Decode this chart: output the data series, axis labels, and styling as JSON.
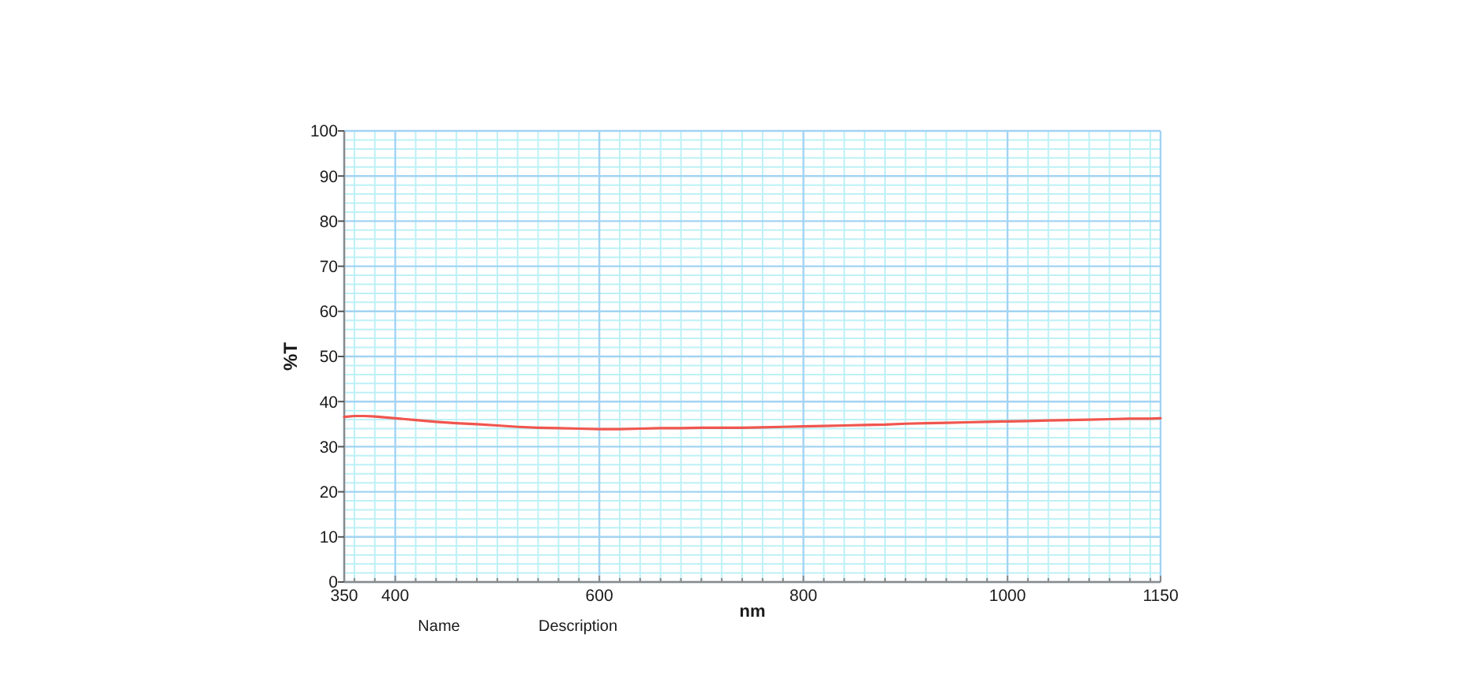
{
  "chart_data": {
    "type": "line",
    "xlabel": "nm",
    "ylabel": "%T",
    "annotations": [
      "Name",
      "Description"
    ],
    "x": [
      350,
      360,
      370,
      380,
      400,
      420,
      440,
      460,
      480,
      500,
      520,
      540,
      560,
      580,
      600,
      620,
      640,
      660,
      680,
      700,
      720,
      740,
      760,
      780,
      800,
      820,
      840,
      860,
      880,
      900,
      920,
      940,
      960,
      980,
      1000,
      1020,
      1040,
      1060,
      1080,
      1100,
      1120,
      1140,
      1150
    ],
    "series": [
      {
        "color": "#f0564e",
        "values": [
          36.6,
          36.8,
          36.8,
          36.7,
          36.3,
          35.9,
          35.5,
          35.2,
          35.0,
          34.7,
          34.4,
          34.2,
          34.1,
          34.0,
          33.9,
          33.9,
          34.0,
          34.1,
          34.1,
          34.2,
          34.2,
          34.2,
          34.3,
          34.4,
          34.5,
          34.6,
          34.7,
          34.8,
          34.9,
          35.1,
          35.2,
          35.3,
          35.4,
          35.5,
          35.6,
          35.7,
          35.8,
          35.9,
          36.0,
          36.1,
          36.2,
          36.2,
          36.3
        ]
      }
    ],
    "xlim": [
      350,
      1150
    ],
    "ylim": [
      0,
      100
    ],
    "xticks": [
      350,
      {
        "value": 360,
        "label": null
      },
      {
        "value": 380,
        "label": null
      },
      400,
      {
        "value": 420,
        "label": null
      },
      {
        "value": 440,
        "label": null
      },
      {
        "value": 460,
        "label": null
      },
      {
        "value": 480,
        "label": null
      },
      {
        "value": 500,
        "label": null
      },
      {
        "value": 520,
        "label": null
      },
      {
        "value": 540,
        "label": null
      },
      {
        "value": 560,
        "label": null
      },
      {
        "value": 580,
        "label": null
      },
      600,
      {
        "value": 620,
        "label": null
      },
      {
        "value": 640,
        "label": null
      },
      {
        "value": 660,
        "label": null
      },
      {
        "value": 680,
        "label": null
      },
      {
        "value": 700,
        "label": null
      },
      {
        "value": 720,
        "label": null
      },
      {
        "value": 740,
        "label": null
      },
      {
        "value": 760,
        "label": null
      },
      {
        "value": 780,
        "label": null
      },
      800,
      {
        "value": 820,
        "label": null
      },
      {
        "value": 840,
        "label": null
      },
      {
        "value": 860,
        "label": null
      },
      {
        "value": 880,
        "label": null
      },
      {
        "value": 900,
        "label": null
      },
      {
        "value": 920,
        "label": null
      },
      {
        "value": 940,
        "label": null
      },
      {
        "value": 960,
        "label": null
      },
      {
        "value": 980,
        "label": null
      },
      1000,
      {
        "value": 1020,
        "label": null
      },
      {
        "value": 1040,
        "label": null
      },
      {
        "value": 1060,
        "label": null
      },
      {
        "value": 1080,
        "label": null
      },
      {
        "value": 1100,
        "label": null
      },
      {
        "value": 1120,
        "label": null
      },
      {
        "value": 1140,
        "label": null
      },
      1150
    ],
    "yticks": [
      0,
      {
        "value": 2,
        "label": null
      },
      {
        "value": 4,
        "label": null
      },
      {
        "value": 6,
        "label": null
      },
      {
        "value": 8,
        "label": null
      },
      10,
      {
        "value": 12,
        "label": null
      },
      {
        "value": 14,
        "label": null
      },
      {
        "value": 16,
        "label": null
      },
      {
        "value": 18,
        "label": null
      },
      20,
      {
        "value": 22,
        "label": null
      },
      {
        "value": 24,
        "label": null
      },
      {
        "value": 26,
        "label": null
      },
      {
        "value": 28,
        "label": null
      },
      30,
      {
        "value": 32,
        "label": null
      },
      {
        "value": 34,
        "label": null
      },
      {
        "value": 36,
        "label": null
      },
      {
        "value": 38,
        "label": null
      },
      40,
      {
        "value": 42,
        "label": null
      },
      {
        "value": 44,
        "label": null
      },
      {
        "value": 46,
        "label": null
      },
      {
        "value": 48,
        "label": null
      },
      50,
      {
        "value": 52,
        "label": null
      },
      {
        "value": 54,
        "label": null
      },
      {
        "value": 56,
        "label": null
      },
      {
        "value": 58,
        "label": null
      },
      60,
      {
        "value": 62,
        "label": null
      },
      {
        "value": 64,
        "label": null
      },
      {
        "value": 66,
        "label": null
      },
      {
        "value": 68,
        "label": null
      },
      70,
      {
        "value": 72,
        "label": null
      },
      {
        "value": 74,
        "label": null
      },
      {
        "value": 76,
        "label": null
      },
      {
        "value": 78,
        "label": null
      },
      80,
      {
        "value": 82,
        "label": null
      },
      {
        "value": 84,
        "label": null
      },
      {
        "value": 86,
        "label": null
      },
      {
        "value": 88,
        "label": null
      },
      90,
      {
        "value": 92,
        "label": null
      },
      {
        "value": 94,
        "label": null
      },
      {
        "value": 96,
        "label": null
      },
      {
        "value": 98,
        "label": null
      },
      100
    ],
    "grid": true
  }
}
